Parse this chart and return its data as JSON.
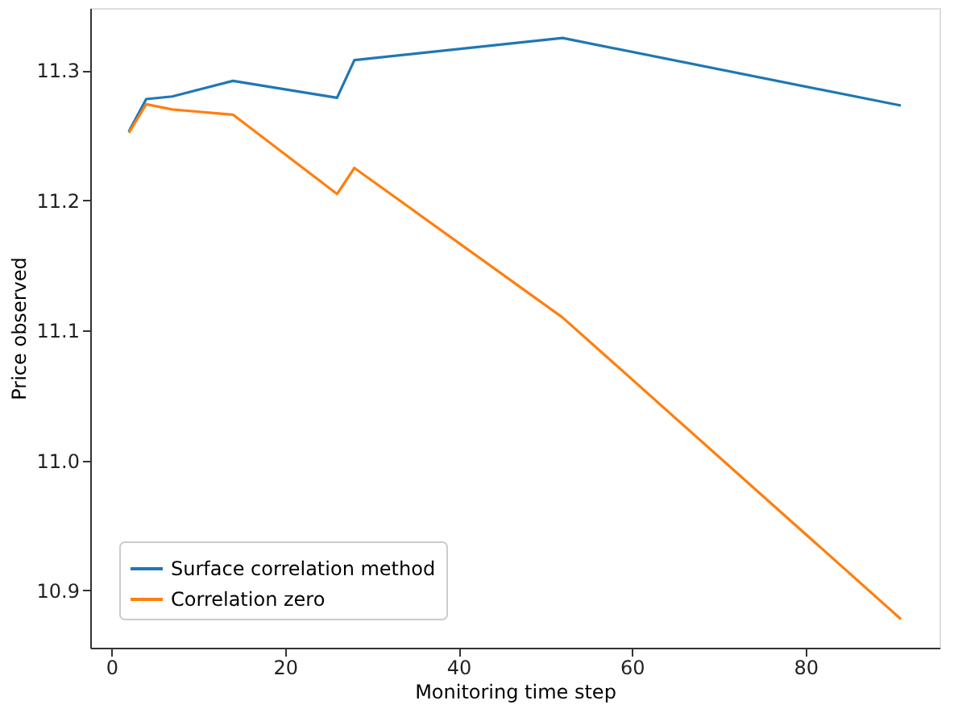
{
  "chart_data": {
    "type": "line",
    "xlabel": "Monitoring time step",
    "ylabel": "Price observed",
    "xlim": [
      -2.45,
      95.45
    ],
    "ylim": [
      10.856,
      11.348
    ],
    "xticks": [
      0,
      20,
      40,
      60,
      80
    ],
    "yticks": [
      10.9,
      {
        "value": 11.0,
        "label": "11.0"
      },
      11.1,
      11.2,
      11.3
    ],
    "grid": false,
    "legend": "bottom left",
    "series": [
      {
        "name": "Surface correlation method",
        "color": "#1f77b4",
        "x": [
          2,
          4,
          7,
          14,
          26,
          28,
          52,
          91
        ],
        "values": [
          11.253,
          11.278,
          11.28,
          11.292,
          11.279,
          11.308,
          11.325,
          11.273
        ]
      },
      {
        "name": "Correlation zero",
        "color": "#ff7f0e",
        "x": [
          2,
          4,
          7,
          14,
          26,
          28,
          52,
          91
        ],
        "values": [
          11.252,
          11.274,
          11.27,
          11.266,
          11.205,
          11.225,
          11.11,
          10.878
        ]
      }
    ]
  }
}
